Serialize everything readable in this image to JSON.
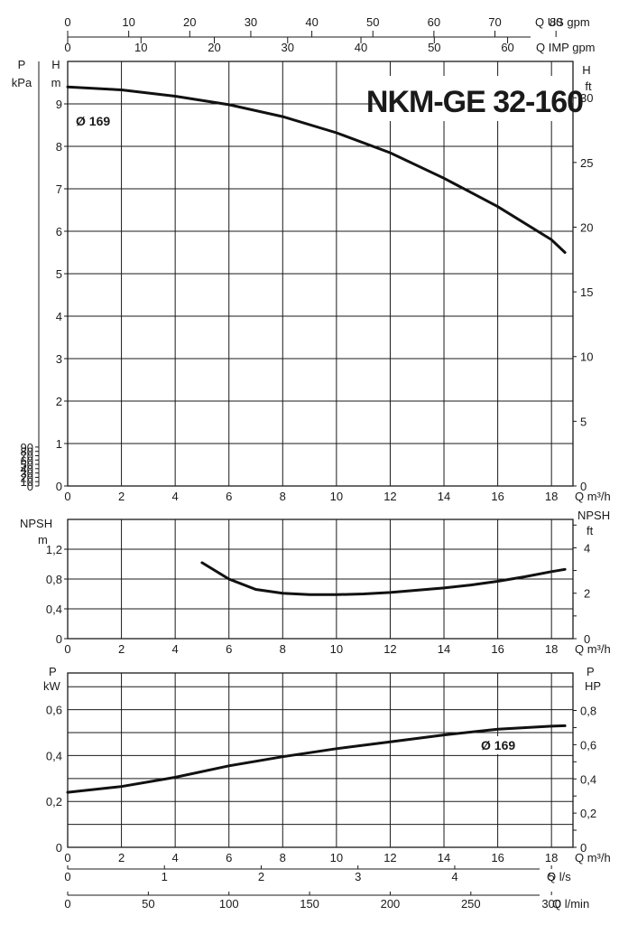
{
  "chart_data": [
    {
      "type": "line",
      "title": "NKM-GE 32-160",
      "curve_label": "Ø 169",
      "xlabel": "Q m³/h",
      "xlim": [
        0,
        18.8
      ],
      "x_ticks": [
        0,
        2,
        4,
        6,
        8,
        10,
        12,
        14,
        16,
        18
      ],
      "left_axis": {
        "label_top": "H",
        "label_unit": "m",
        "range": [
          0,
          10
        ],
        "ticks": [
          0,
          1,
          2,
          3,
          4,
          5,
          6,
          7,
          8,
          9
        ]
      },
      "left_outer_axis": {
        "label_top": "P",
        "label_unit": "kPa",
        "ticks": [
          0,
          10,
          20,
          30,
          40,
          50,
          60,
          70,
          80,
          90
        ]
      },
      "right_axis": {
        "label_top": "H",
        "label_unit": "ft",
        "ticks": [
          0,
          5,
          10,
          15,
          20,
          25,
          30
        ]
      },
      "top_axes": [
        {
          "label": "Q US gpm",
          "ticks": [
            0,
            10,
            20,
            30,
            40,
            50,
            60,
            70,
            80
          ]
        },
        {
          "label": "Q IMP gpm",
          "ticks": [
            0,
            10,
            20,
            30,
            40,
            50,
            60
          ]
        }
      ],
      "grid": true,
      "series": [
        {
          "x": [
            0,
            2,
            4,
            6,
            8,
            10,
            12,
            14,
            16,
            18,
            18.5
          ],
          "y": [
            9.4,
            9.33,
            9.18,
            8.98,
            8.7,
            8.32,
            7.85,
            7.25,
            6.58,
            5.8,
            5.5
          ]
        }
      ]
    },
    {
      "type": "line",
      "xlabel": "Q m³/h",
      "xlim": [
        0,
        18.8
      ],
      "x_ticks": [
        0,
        2,
        4,
        6,
        8,
        10,
        12,
        14,
        16,
        18
      ],
      "left_axis": {
        "label_top": "NPSH",
        "label_unit": "m",
        "range": [
          0,
          1.5
        ],
        "ticks": [
          "0",
          "0,4",
          "0,8",
          "1,2"
        ]
      },
      "right_axis": {
        "label_top": "NPSH",
        "label_unit": "ft",
        "ticks": [
          0,
          2,
          4
        ]
      },
      "grid": true,
      "series": [
        {
          "x": [
            5,
            6,
            7,
            8,
            9,
            10,
            11,
            12,
            13,
            14,
            15,
            16,
            17,
            18,
            18.5
          ],
          "y": [
            1.02,
            0.8,
            0.66,
            0.61,
            0.59,
            0.59,
            0.6,
            0.62,
            0.65,
            0.68,
            0.72,
            0.77,
            0.83,
            0.9,
            0.93
          ]
        }
      ]
    },
    {
      "type": "line",
      "curve_label": "Ø 169",
      "xlabel": "Q m³/h",
      "xlim": [
        0,
        18.8
      ],
      "x_ticks": [
        0,
        2,
        4,
        6,
        8,
        10,
        12,
        14,
        16,
        18
      ],
      "left_axis": {
        "label_top": "P",
        "label_unit": "kW",
        "range": [
          0,
          0.7
        ],
        "ticks": [
          "0",
          "0,2",
          "0,4",
          "0,6"
        ]
      },
      "right_axis": {
        "label_top": "P",
        "label_unit": "HP",
        "ticks": [
          "0",
          "0,2",
          "0,4",
          "0,6",
          "0,8"
        ]
      },
      "bottom_axes": [
        {
          "label": "Q l/s",
          "ticks": [
            0,
            1,
            2,
            3,
            4,
            5
          ]
        },
        {
          "label": "Q l/min",
          "ticks": [
            0,
            50,
            100,
            150,
            200,
            250,
            300
          ]
        }
      ],
      "grid": true,
      "series": [
        {
          "x": [
            0,
            2,
            4,
            6,
            8,
            10,
            12,
            14,
            16,
            18,
            18.5
          ],
          "y": [
            0.24,
            0.265,
            0.305,
            0.355,
            0.395,
            0.43,
            0.46,
            0.49,
            0.515,
            0.528,
            0.53
          ]
        }
      ]
    }
  ]
}
